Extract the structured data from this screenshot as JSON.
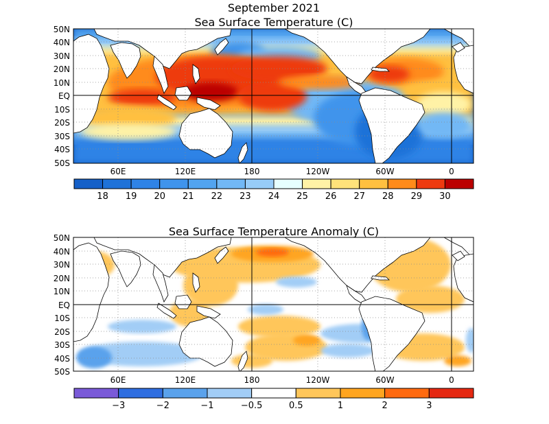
{
  "figure": {
    "title": "September 2021",
    "top_panel": {
      "title": "Sea Surface Temperature (C)",
      "lat_labels": [
        "50N",
        "40N",
        "30N",
        "20N",
        "10N",
        "EQ",
        "10S",
        "20S",
        "30S",
        "40S",
        "50S"
      ],
      "lon_labels": [
        "60E",
        "120E",
        "180",
        "120W",
        "60W",
        "0"
      ],
      "colorbar": {
        "tick_labels": [
          "18",
          "19",
          "20",
          "21",
          "22",
          "23",
          "24",
          "25",
          "26",
          "27",
          "28",
          "29",
          "30"
        ],
        "colors": [
          "#1560c8",
          "#1f72d8",
          "#2f83e6",
          "#3f94ec",
          "#52a4f0",
          "#72b8f5",
          "#97ccf8",
          "#e6ffff",
          "#fff2a6",
          "#ffe27a",
          "#ffc040",
          "#ff8b1a",
          "#ee3a10",
          "#bb0000"
        ]
      }
    },
    "bottom_panel": {
      "title": "Sea Surface Temperature Anomaly (C)",
      "lat_labels": [
        "50N",
        "40N",
        "30N",
        "20N",
        "10N",
        "EQ",
        "10S",
        "20S",
        "30S",
        "40S",
        "50S"
      ],
      "lon_labels": [
        "60E",
        "120E",
        "180",
        "120W",
        "60W",
        "0"
      ],
      "colorbar": {
        "tick_labels": [
          "−3",
          "−2",
          "−1",
          "−0.5",
          "0.5",
          "1",
          "2",
          "3"
        ],
        "colors": [
          "#7a5ad8",
          "#2f6ee0",
          "#5aa2ec",
          "#a2cdf6",
          "#ffffff",
          "#ffc65a",
          "#ffa520",
          "#ff6a10",
          "#e52812"
        ]
      }
    },
    "colors": {
      "land": "#ffffff",
      "coast": "#000000",
      "grid": "#8a8a8a"
    }
  }
}
